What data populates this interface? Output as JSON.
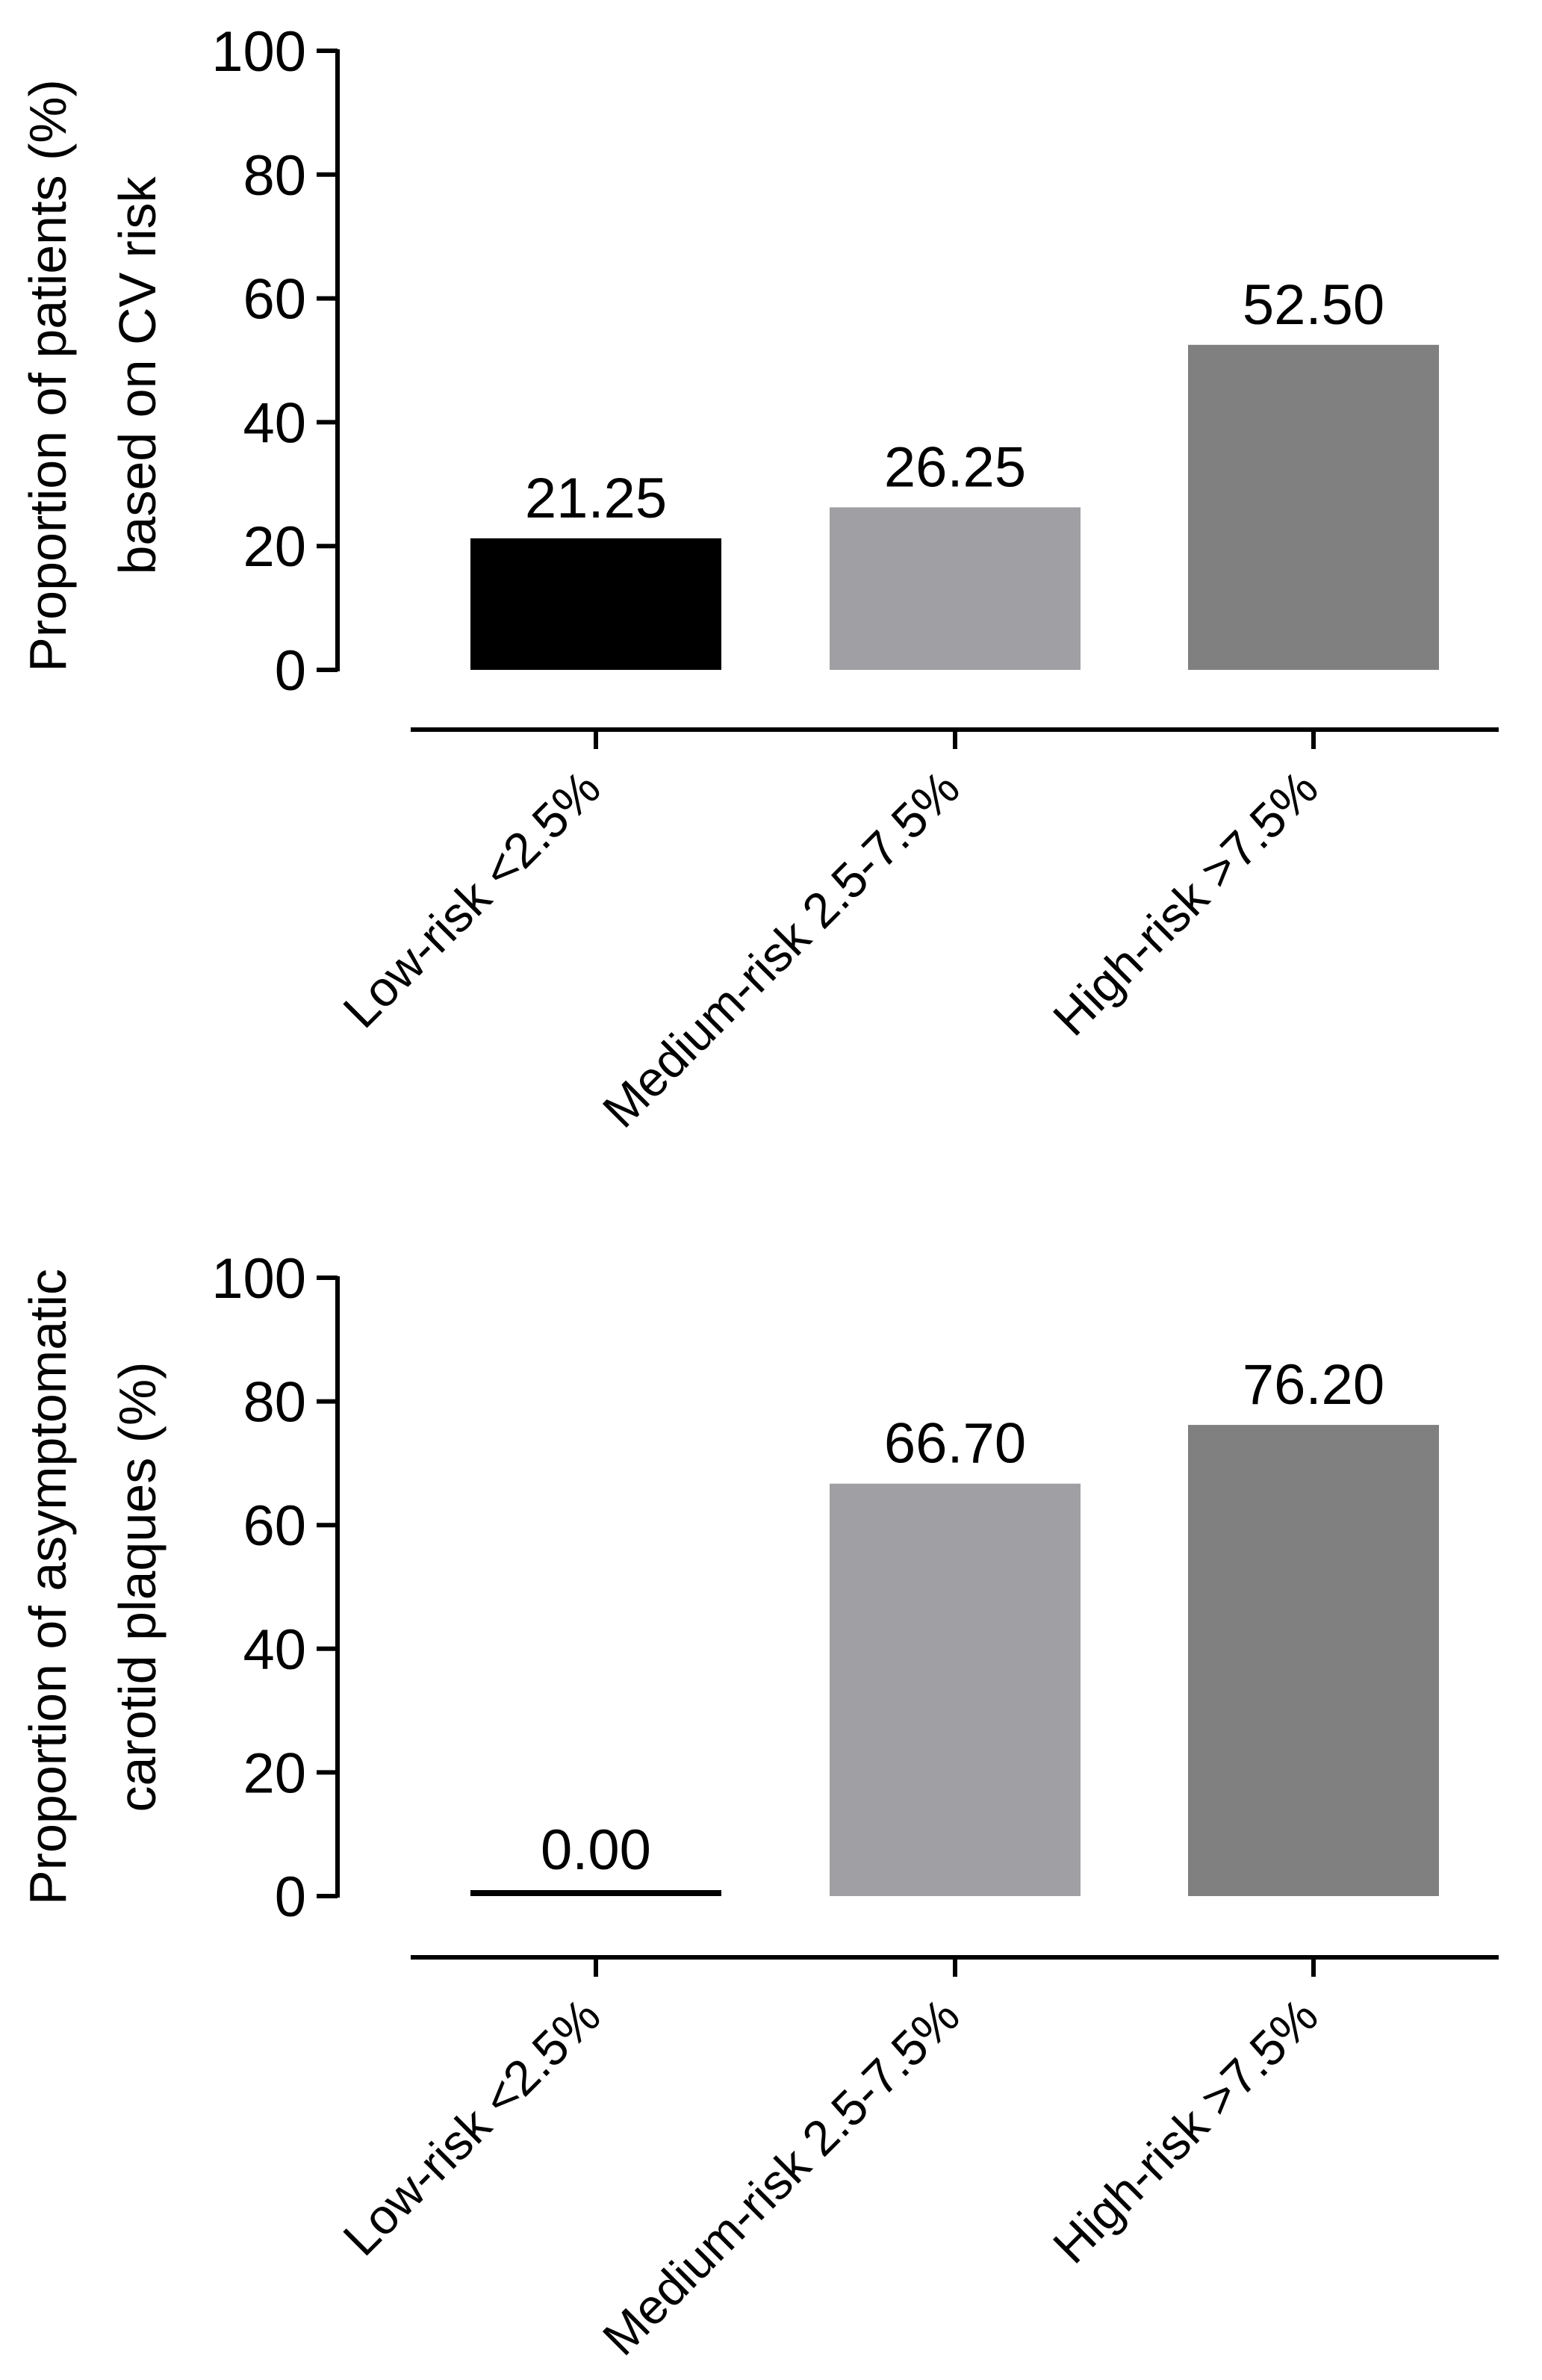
{
  "chart_data": [
    {
      "type": "bar",
      "categories": [
        "Low-risk <2.5%",
        "Medium-risk 2.5-7.5%",
        "High-risk >7.5%"
      ],
      "values": [
        21.25,
        26.25,
        52.5
      ],
      "value_labels": [
        "21.25",
        "26.25",
        "52.50"
      ],
      "ylabel_lines": [
        "Proportion of patients (%)",
        "based on CV risk"
      ],
      "ylim": [
        0,
        100
      ],
      "yticks": [
        "0",
        "20",
        "40",
        "60",
        "80",
        "100"
      ],
      "bar_colors": [
        "#000000",
        "#a0a0a4",
        "#808080"
      ],
      "grid": false
    },
    {
      "type": "bar",
      "categories": [
        "Low-risk <2.5%",
        "Medium-risk 2.5-7.5%",
        "High-risk >7.5%"
      ],
      "values": [
        0.0,
        66.7,
        76.2
      ],
      "value_labels": [
        "0.00",
        "66.70",
        "76.20"
      ],
      "ylabel_lines": [
        "Proportion of asymptomatic",
        "carotid plaques (%)"
      ],
      "ylim": [
        0,
        100
      ],
      "yticks": [
        "0",
        "20",
        "40",
        "60",
        "80",
        "100"
      ],
      "bar_colors": [
        "#000000",
        "#a0a0a4",
        "#808080"
      ],
      "grid": false
    }
  ]
}
